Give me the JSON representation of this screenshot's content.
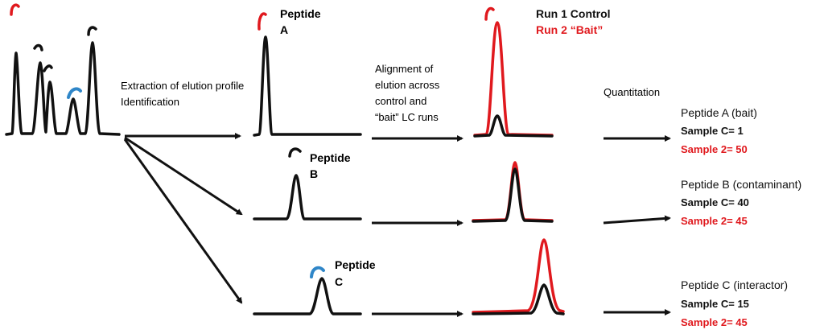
{
  "colors": {
    "control": "#111111",
    "bait": "#e0191e",
    "blue_mark": "#2f86c8"
  },
  "steps": {
    "extraction": [
      "Extraction of elution profile",
      "Identification"
    ],
    "alignment": [
      "Alignment of",
      "elution across",
      "control and",
      "“bait” LC runs"
    ],
    "quantitation": "Quantitation"
  },
  "peptide_labels": {
    "a": [
      "Peptide",
      "A"
    ],
    "b": [
      "Peptide",
      "B"
    ],
    "c": [
      "Peptide",
      "C"
    ]
  },
  "legend": {
    "run1": "Run 1 Control",
    "run2": "Run 2 “Bait”"
  },
  "results": {
    "a": {
      "title": "Peptide A (bait)",
      "control": "Sample C= 1",
      "bait": "Sample 2= 50"
    },
    "b": {
      "title": "Peptide B  (contaminant)",
      "control": "Sample C= 40",
      "bait": "Sample 2= 45"
    },
    "c": {
      "title": "Peptide C  (interactor)",
      "control": "Sample C= 15",
      "bait": "Sample 2= 45"
    }
  }
}
